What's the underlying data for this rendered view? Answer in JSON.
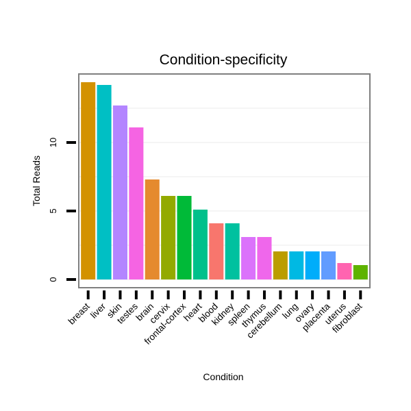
{
  "chart_data": {
    "type": "bar",
    "title": "Condition-specificity",
    "xlabel": "Condition",
    "ylabel": "Total Reads",
    "ylim": [
      -0.6,
      15
    ],
    "yticks": [
      0,
      5,
      10
    ],
    "grid": true,
    "legend": "none",
    "categories": [
      "breast",
      "liver",
      "skin",
      "testes",
      "brain",
      "cervix",
      "frontal-cortex",
      "heart",
      "blood",
      "kidney",
      "spleen",
      "thymus",
      "cerebellum",
      "lung",
      "ovary",
      "placenta",
      "uterus",
      "fibroblast"
    ],
    "values": [
      14.4,
      14.2,
      12.7,
      11.1,
      7.3,
      6.1,
      6.1,
      5.1,
      4.1,
      4.1,
      3.1,
      3.1,
      2.05,
      2.05,
      2.05,
      2.05,
      1.2,
      1.05
    ],
    "colors": [
      "#D39200",
      "#00BFC4",
      "#B385FF",
      "#F564E3",
      "#E58A2E",
      "#93AA00",
      "#00BA38",
      "#00C08B",
      "#F8766D",
      "#00C19F",
      "#DB72FB",
      "#EF67EB",
      "#BB9D00",
      "#00B9E3",
      "#00ADFA",
      "#619CFF",
      "#FF64B0",
      "#5EB300"
    ]
  }
}
